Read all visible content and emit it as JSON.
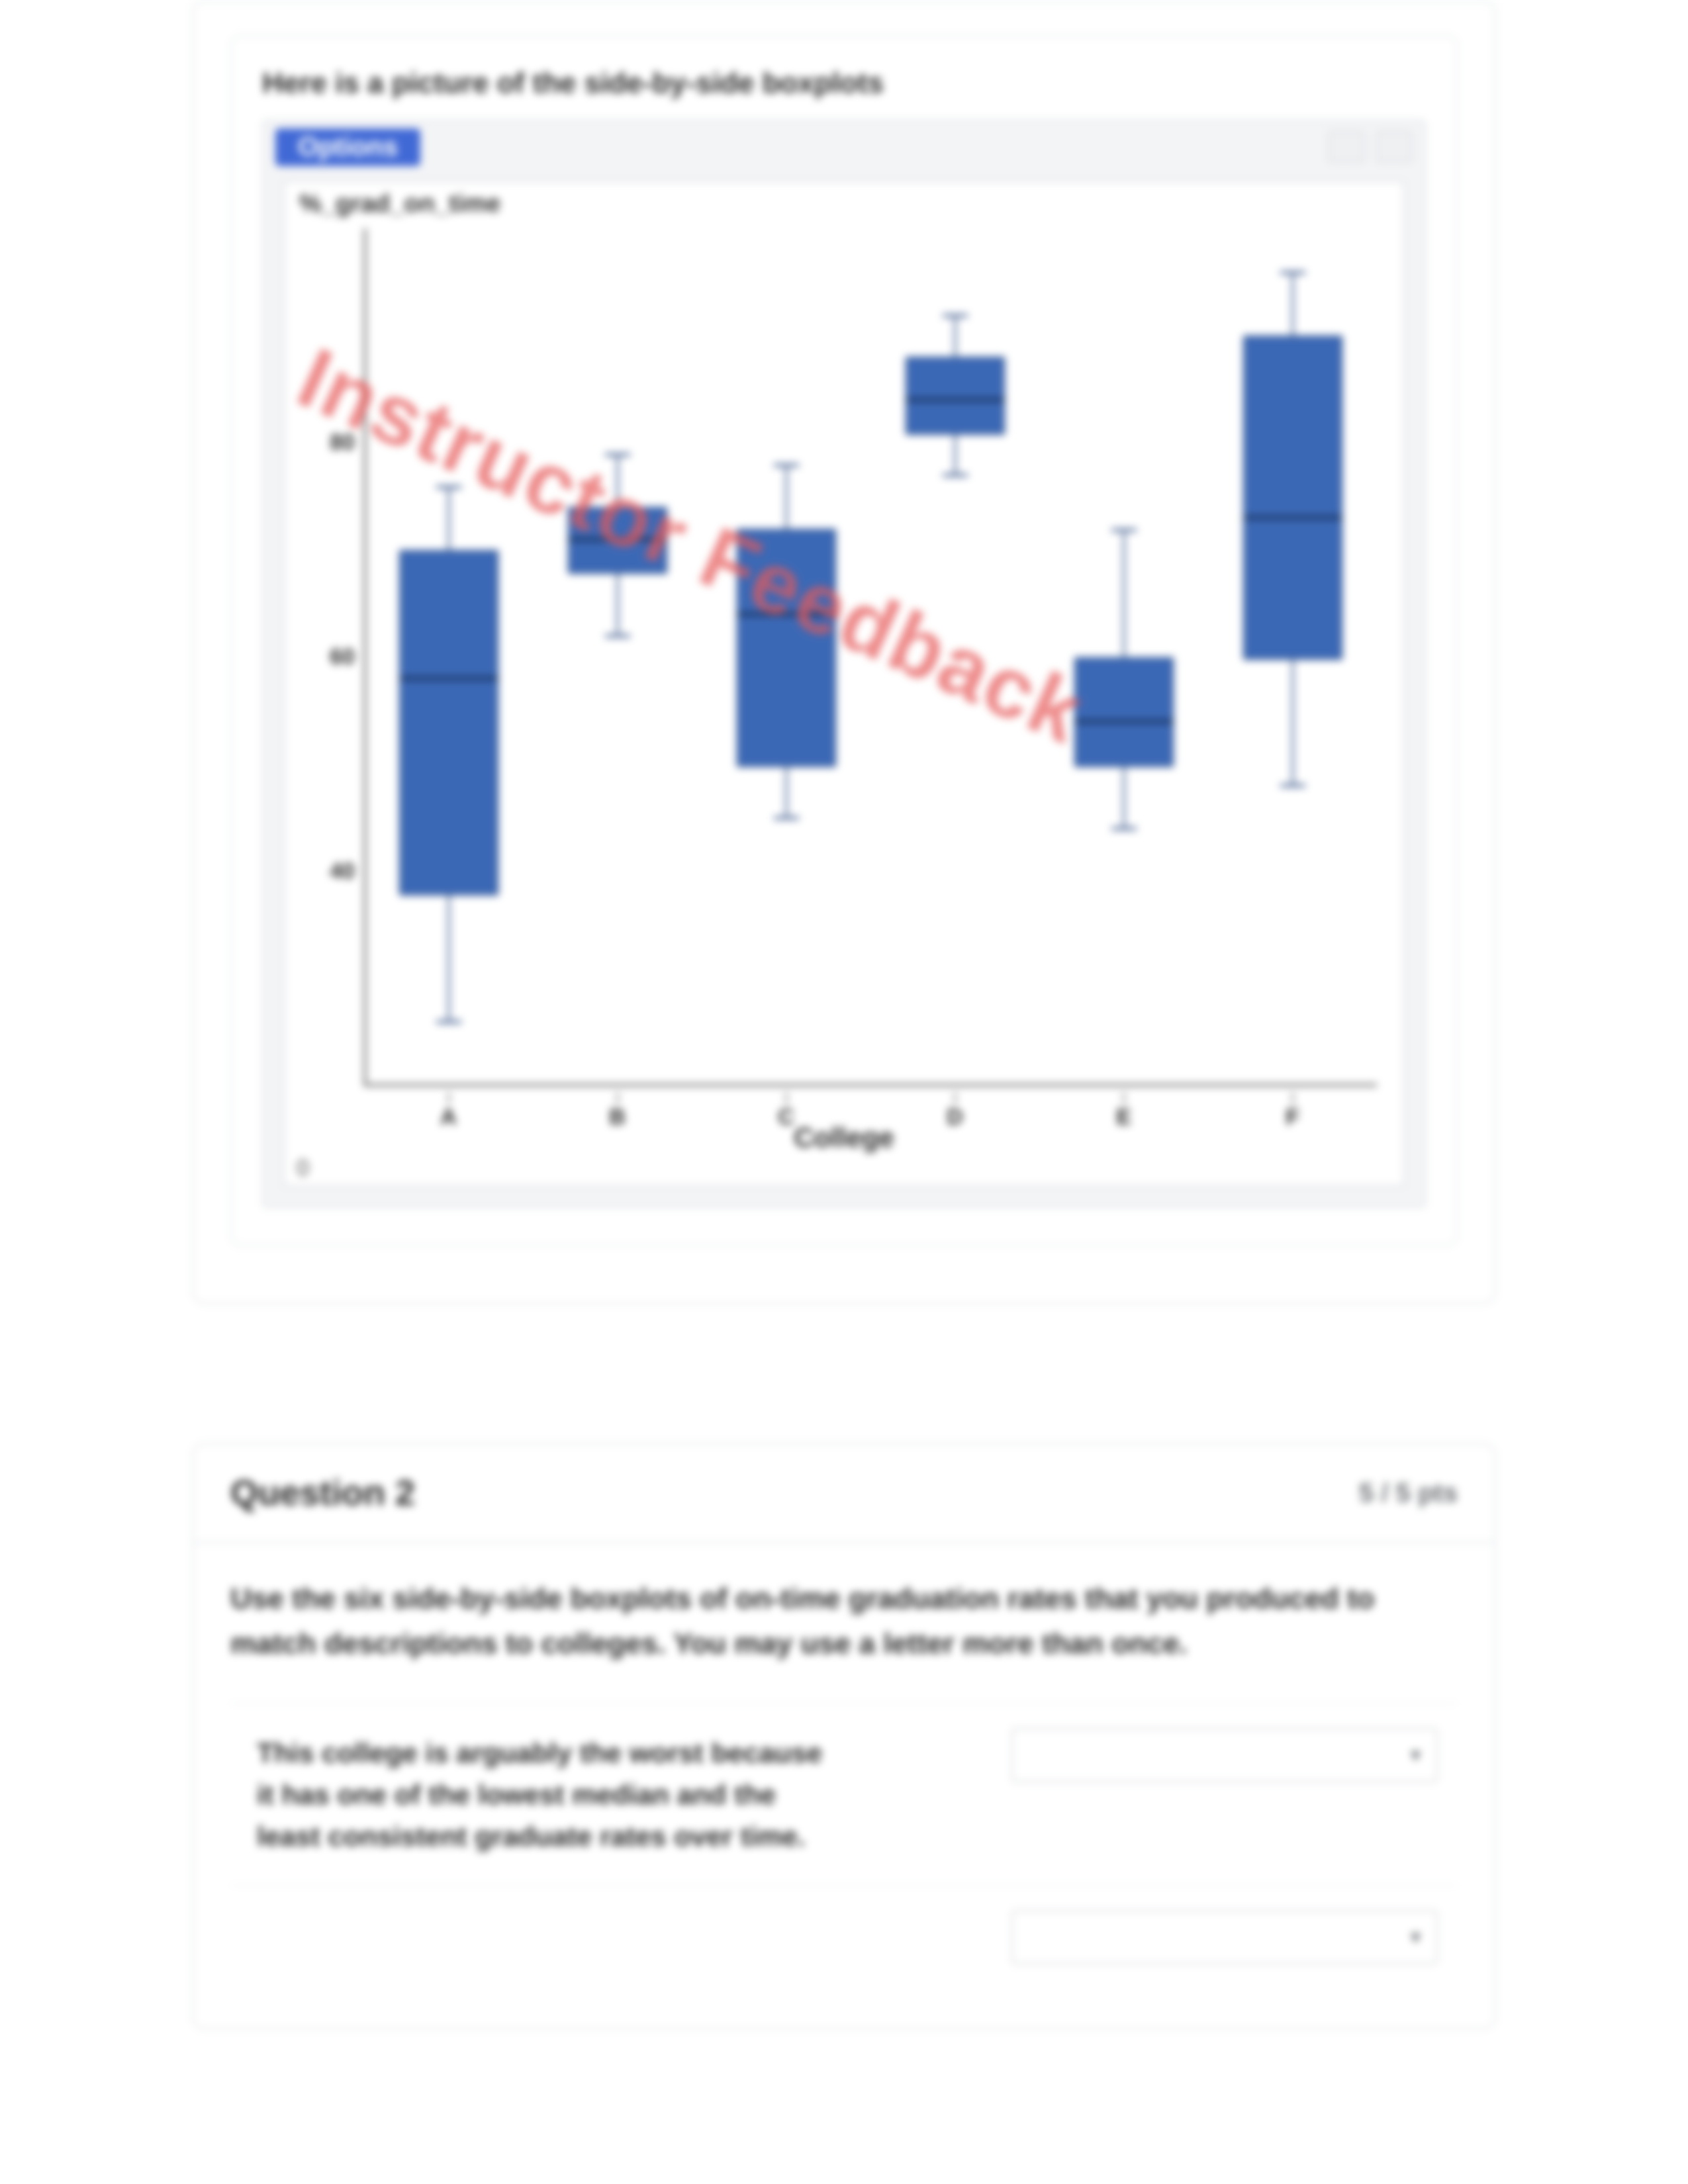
{
  "card1": {
    "caption": "Here is a picture of the side-by-side boxplots",
    "options_label": "Options",
    "watermark": "Instructor Feedback",
    "chart": {
      "type": "boxplot",
      "ylabel": "%_grad_on_time",
      "xlabel": "College",
      "axis_origin_label": "0",
      "ylim": [
        20,
        100
      ],
      "ytick_values": [
        40,
        60,
        80
      ],
      "ytick_labels": [
        "40",
        "60",
        "80"
      ],
      "x_categories": [
        "A",
        "B",
        "C",
        "D",
        "E",
        "F"
      ],
      "box_color": "#3b68b5",
      "box_border_color": "#27477f",
      "median_color": "#0b1e3d",
      "background_color": "#ffffff",
      "window_bg": "#f3f4f6",
      "boxes": [
        {
          "cat": "A",
          "min": 26,
          "q1": 38,
          "median": 58,
          "q3": 70,
          "max": 76
        },
        {
          "cat": "B",
          "min": 62,
          "q1": 68,
          "median": 71,
          "q3": 74,
          "max": 79
        },
        {
          "cat": "C",
          "min": 45,
          "q1": 50,
          "median": 64,
          "q3": 72,
          "max": 78
        },
        {
          "cat": "D",
          "min": 77,
          "q1": 81,
          "median": 84,
          "q3": 88,
          "max": 92
        },
        {
          "cat": "E",
          "min": 44,
          "q1": 50,
          "median": 54,
          "q3": 60,
          "max": 72
        },
        {
          "cat": "F",
          "min": 48,
          "q1": 60,
          "median": 73,
          "q3": 90,
          "max": 96
        }
      ]
    }
  },
  "question": {
    "title": "Question 2",
    "points": "5 / 5 pts",
    "prompt": "Use the six side-by-side boxplots of on-time graduation rates that you produced to match descriptions to colleges. You may use a letter more than once.",
    "rows": [
      {
        "desc": "This college is arguably the worst because it has one of the lowest median and the least consistent graduate rates over time.",
        "selected": ""
      },
      {
        "desc": "",
        "selected": ""
      }
    ],
    "select_placeholder": ""
  },
  "colors": {
    "card_border": "#e9ecef",
    "text_primary": "#2b2b2b",
    "text_muted": "#6b6f73",
    "accent": "#4169d6",
    "watermark": "rgba(231,90,90,0.7)"
  }
}
